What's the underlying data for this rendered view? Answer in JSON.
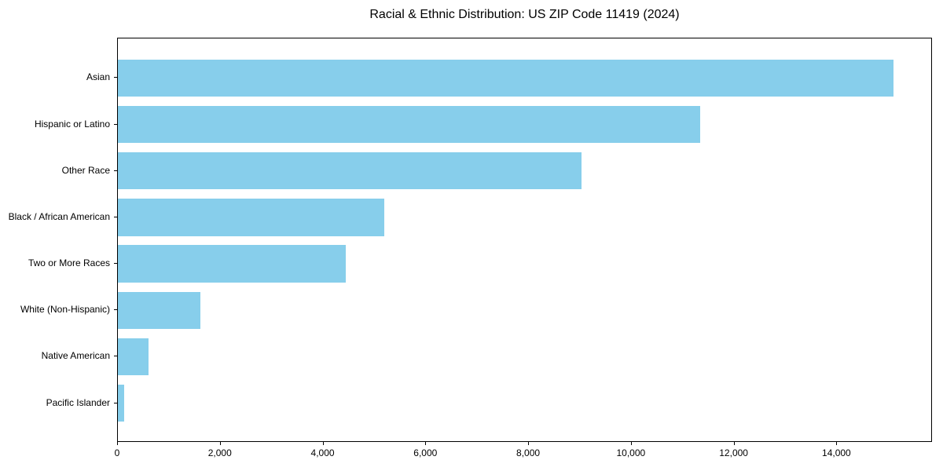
{
  "title": "Racial & Ethnic Distribution: US ZIP Code 11419 (2024)",
  "colors": {
    "bar": "#87CEEB",
    "axis": "#000000",
    "background": "#FFFFFF",
    "text": "#000000"
  },
  "chart_data": {
    "type": "bar",
    "orientation": "horizontal",
    "title": "Racial & Ethnic Distribution: US ZIP Code 11419 (2024)",
    "categories": [
      "Asian",
      "Hispanic or Latino",
      "Other Race",
      "Black / African American",
      "Two or More Races",
      "White (Non-Hispanic)",
      "Native American",
      "Pacific Islander"
    ],
    "values": [
      15100,
      11340,
      9030,
      5190,
      4430,
      1610,
      600,
      120
    ],
    "xlabel": "",
    "ylabel": "",
    "xlim": [
      0,
      15860
    ],
    "x_ticks": [
      0,
      2000,
      4000,
      6000,
      8000,
      10000,
      12000,
      14000
    ],
    "x_tick_labels": [
      "0",
      "2,000",
      "4,000",
      "6,000",
      "8,000",
      "10,000",
      "12,000",
      "14,000"
    ],
    "bar_color": "#87CEEB",
    "bar_height_fraction": 0.8,
    "grid": false,
    "legend": null,
    "frame": true
  }
}
